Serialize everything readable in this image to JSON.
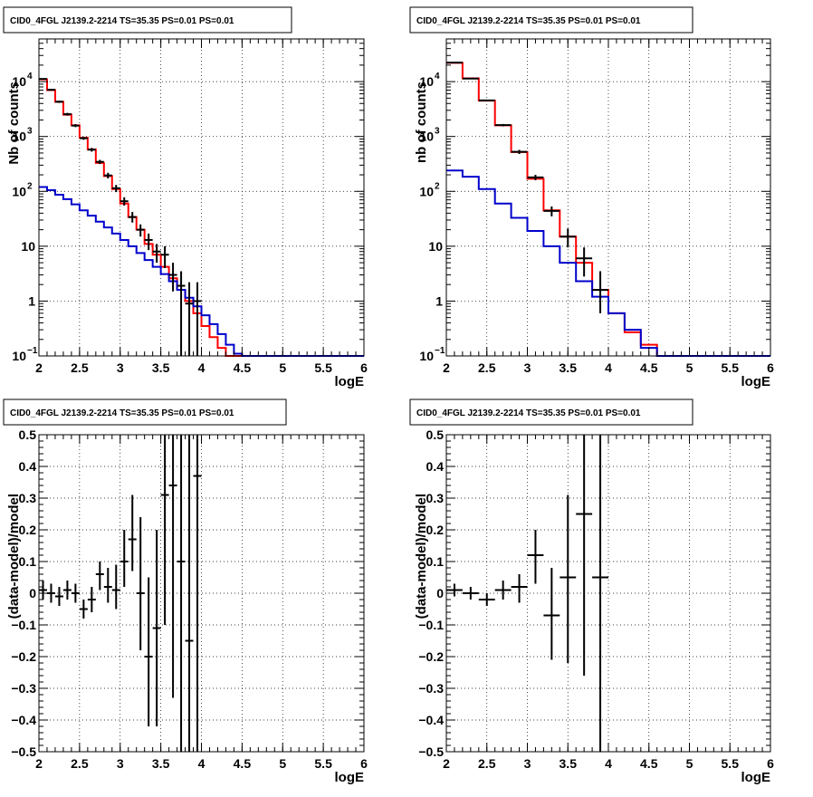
{
  "chart_data": [
    {
      "type": "histogram",
      "title": "CID0_4FGL J2139.2-2214 TS=35.35 PS=0.01 PS=0.01",
      "xlabel": "logE",
      "ylabel": "Nb of counts",
      "xlim": [
        2,
        6
      ],
      "ylim": [
        0.1,
        60000
      ],
      "y_scale": "log",
      "grid": true,
      "x_ticks": [
        "2",
        "2.5",
        "3",
        "3.5",
        "4",
        "4.5",
        "5",
        "5.5",
        "6"
      ],
      "y_ticks": [
        {
          "v": 0.1,
          "label": "10",
          "exp": "−1"
        },
        {
          "v": 1,
          "label": "1",
          "exp": ""
        },
        {
          "v": 10,
          "label": "10",
          "exp": ""
        },
        {
          "v": 100,
          "label": "10",
          "exp": "2"
        },
        {
          "v": 1000,
          "label": "10",
          "exp": "3"
        },
        {
          "v": 10000,
          "label": "10",
          "exp": "4"
        }
      ],
      "bin_edges": [
        2,
        2.1,
        2.2,
        2.3,
        2.4,
        2.5,
        2.6,
        2.7,
        2.8,
        2.9,
        3,
        3.1,
        3.2,
        3.3,
        3.4,
        3.5,
        3.6,
        3.7,
        3.8,
        3.9,
        4,
        4.1,
        4.2,
        4.3,
        4.4,
        4.5,
        4.6,
        4.7,
        4.8,
        4.9,
        5,
        5.1,
        5.2,
        5.3,
        5.4,
        5.5,
        5.6,
        5.7,
        5.8,
        5.9,
        6
      ],
      "series": [
        {
          "color": "#ff0000",
          "style": "step",
          "values": [
            11000,
            7000,
            4300,
            2500,
            1600,
            950,
            580,
            330,
            190,
            110,
            60,
            34,
            20,
            11,
            7,
            4.2,
            2.6,
            1.6,
            1.0,
            0.6,
            0.35,
            0.22,
            0.14,
            0.1,
            0.1,
            0.1,
            0.1,
            0.1,
            0.1,
            0.1,
            0.1,
            0.1,
            0.1,
            0.1,
            0.1,
            0.1,
            0.1,
            0.1,
            0.1,
            0.1
          ]
        },
        {
          "color": "#0000cc",
          "style": "step",
          "values": [
            120,
            105,
            87,
            72,
            58,
            45,
            36,
            28,
            22,
            17,
            13,
            10,
            7.5,
            5.6,
            4.2,
            3.1,
            2.3,
            1.6,
            1.15,
            0.8,
            0.55,
            0.38,
            0.25,
            0.16,
            0.11,
            0.1,
            0.1,
            0.1,
            0.1,
            0.1,
            0.1,
            0.1,
            0.1,
            0.1,
            0.1,
            0.1,
            0.1,
            0.1,
            0.1,
            0.1
          ]
        },
        {
          "color": "#000000",
          "style": "errorbars",
          "points": [
            {
              "x": 2.05,
              "y": 11200,
              "lo": 10900,
              "hi": 11500
            },
            {
              "x": 2.15,
              "y": 7100,
              "lo": 6850,
              "hi": 7350
            },
            {
              "x": 2.25,
              "y": 4300,
              "lo": 4100,
              "hi": 4500
            },
            {
              "x": 2.35,
              "y": 2550,
              "lo": 2400,
              "hi": 2700
            },
            {
              "x": 2.45,
              "y": 1580,
              "lo": 1480,
              "hi": 1680
            },
            {
              "x": 2.55,
              "y": 930,
              "lo": 870,
              "hi": 990
            },
            {
              "x": 2.65,
              "y": 575,
              "lo": 530,
              "hi": 620
            },
            {
              "x": 2.75,
              "y": 345,
              "lo": 315,
              "hi": 375
            },
            {
              "x": 2.85,
              "y": 195,
              "lo": 172,
              "hi": 218
            },
            {
              "x": 2.95,
              "y": 114,
              "lo": 97,
              "hi": 131
            },
            {
              "x": 3.05,
              "y": 66,
              "lo": 55,
              "hi": 78
            },
            {
              "x": 3.15,
              "y": 34,
              "lo": 27,
              "hi": 42
            },
            {
              "x": 3.25,
              "y": 20,
              "lo": 15,
              "hi": 25
            },
            {
              "x": 3.35,
              "y": 13,
              "lo": 8.5,
              "hi": 17
            },
            {
              "x": 3.45,
              "y": 8,
              "lo": 5,
              "hi": 11
            },
            {
              "x": 3.55,
              "y": 7,
              "lo": 4,
              "hi": 10
            },
            {
              "x": 3.65,
              "y": 3,
              "lo": 1.5,
              "hi": 5
            },
            {
              "x": 3.75,
              "y": 1.9,
              "lo": 0.1,
              "hi": 3.5
            },
            {
              "x": 3.85,
              "y": 0.9,
              "lo": 0.1,
              "hi": 2.2
            },
            {
              "x": 3.95,
              "y": 1.0,
              "lo": 0.1,
              "hi": 2.2
            }
          ]
        }
      ]
    },
    {
      "type": "histogram",
      "title": "CID0_4FGL J2139.2-2214 TS=35.35 PS=0.01 PS=0.01",
      "xlabel": "logE",
      "ylabel": "nb of counts",
      "xlim": [
        2,
        6
      ],
      "ylim": [
        0.1,
        60000
      ],
      "y_scale": "log",
      "grid": true,
      "x_ticks": [
        "2",
        "2.5",
        "3",
        "3.5",
        "4",
        "4.5",
        "5",
        "5.5",
        "6"
      ],
      "y_ticks": [
        {
          "v": 0.1,
          "label": "10",
          "exp": "−1"
        },
        {
          "v": 1,
          "label": "1",
          "exp": ""
        },
        {
          "v": 10,
          "label": "10",
          "exp": ""
        },
        {
          "v": 100,
          "label": "10",
          "exp": "2"
        },
        {
          "v": 1000,
          "label": "10",
          "exp": "3"
        },
        {
          "v": 10000,
          "label": "10",
          "exp": "4"
        }
      ],
      "bin_edges": [
        2,
        2.2,
        2.4,
        2.6,
        2.8,
        3,
        3.2,
        3.4,
        3.6,
        3.8,
        4,
        4.2,
        4.4,
        4.6,
        4.8,
        5,
        5.2,
        5.4,
        5.6,
        5.8,
        6
      ],
      "series": [
        {
          "color": "#ff0000",
          "style": "step",
          "values": [
            22000,
            11500,
            4500,
            1600,
            520,
            170,
            45,
            15,
            5,
            1.6,
            0.6,
            0.27,
            0.16,
            0.1,
            0.1,
            0.1,
            0.1,
            0.1,
            0.1,
            0.1
          ]
        },
        {
          "color": "#0000cc",
          "style": "step",
          "values": [
            240,
            185,
            110,
            60,
            33,
            19,
            10,
            5,
            2.3,
            1.2,
            0.6,
            0.3,
            0.14,
            0.1,
            0.1,
            0.1,
            0.1,
            0.1,
            0.1,
            0.1
          ]
        },
        {
          "color": "#000000",
          "style": "errorbars",
          "points": [
            {
              "x": 2.1,
              "y": 22200,
              "lo": 21800,
              "hi": 22600
            },
            {
              "x": 2.3,
              "y": 11400,
              "lo": 11100,
              "hi": 11700
            },
            {
              "x": 2.5,
              "y": 4550,
              "lo": 4400,
              "hi": 4700
            },
            {
              "x": 2.7,
              "y": 1610,
              "lo": 1530,
              "hi": 1690
            },
            {
              "x": 2.9,
              "y": 525,
              "lo": 480,
              "hi": 570
            },
            {
              "x": 3.1,
              "y": 180,
              "lo": 160,
              "hi": 200
            },
            {
              "x": 3.3,
              "y": 44,
              "lo": 35,
              "hi": 53
            },
            {
              "x": 3.5,
              "y": 15,
              "lo": 9.5,
              "hi": 21
            },
            {
              "x": 3.7,
              "y": 6,
              "lo": 2.8,
              "hi": 9.5
            },
            {
              "x": 3.9,
              "y": 1.6,
              "lo": 0.6,
              "hi": 3.5
            }
          ]
        }
      ]
    },
    {
      "type": "scatter",
      "title": "CID0_4FGL J2139.2-2214 TS=35.35 PS=0.01 PS=0.01",
      "xlabel": "logE",
      "ylabel": "(data-model)/model",
      "xlim": [
        2,
        6
      ],
      "ylim": [
        -0.5,
        0.5
      ],
      "grid": true,
      "x_ticks": [
        "2",
        "2.5",
        "3",
        "3.5",
        "4",
        "4.5",
        "5",
        "5.5",
        "6"
      ],
      "y_ticks": [
        "−0.5",
        "−0.4",
        "−0.3",
        "−0.2",
        "−0.1",
        "0",
        "0.1",
        "0.2",
        "0.3",
        "0.4",
        "0.5"
      ],
      "series": [
        {
          "color": "#000000",
          "style": "errorbars",
          "points": [
            {
              "x": 2.05,
              "y": 0.01,
              "lo": -0.02,
              "hi": 0.04
            },
            {
              "x": 2.15,
              "y": 0.0,
              "lo": -0.03,
              "hi": 0.03
            },
            {
              "x": 2.25,
              "y": -0.01,
              "lo": -0.04,
              "hi": 0.02
            },
            {
              "x": 2.35,
              "y": 0.01,
              "lo": -0.02,
              "hi": 0.04
            },
            {
              "x": 2.45,
              "y": 0.0,
              "lo": -0.03,
              "hi": 0.03
            },
            {
              "x": 2.55,
              "y": -0.05,
              "lo": -0.08,
              "hi": -0.02
            },
            {
              "x": 2.65,
              "y": -0.02,
              "lo": -0.06,
              "hi": 0.02
            },
            {
              "x": 2.75,
              "y": 0.06,
              "lo": 0.01,
              "hi": 0.1
            },
            {
              "x": 2.85,
              "y": 0.02,
              "lo": -0.03,
              "hi": 0.08
            },
            {
              "x": 2.95,
              "y": 0.01,
              "lo": -0.05,
              "hi": 0.09
            },
            {
              "x": 3.05,
              "y": 0.1,
              "lo": 0.02,
              "hi": 0.2
            },
            {
              "x": 3.15,
              "y": 0.17,
              "lo": 0.07,
              "hi": 0.31
            },
            {
              "x": 3.25,
              "y": 0.0,
              "lo": -0.18,
              "hi": 0.24
            },
            {
              "x": 3.35,
              "y": -0.2,
              "lo": -0.42,
              "hi": 0.05
            },
            {
              "x": 3.45,
              "y": -0.11,
              "lo": -0.42,
              "hi": 0.2
            },
            {
              "x": 3.55,
              "y": 0.31,
              "lo": -0.1,
              "hi": 0.5
            },
            {
              "x": 3.65,
              "y": 0.34,
              "lo": -0.33,
              "hi": 0.5
            },
            {
              "x": 3.75,
              "y": 0.1,
              "lo": -0.5,
              "hi": 0.5
            },
            {
              "x": 3.85,
              "y": -0.15,
              "lo": -0.5,
              "hi": 0.5
            },
            {
              "x": 3.95,
              "y": 0.37,
              "lo": -0.5,
              "hi": 0.5
            }
          ]
        }
      ]
    },
    {
      "type": "scatter",
      "title": "CID0_4FGL J2139.2-2214 TS=35.35 PS=0.01 PS=0.01",
      "xlabel": "logE",
      "ylabel": "(data-model)/model",
      "xlim": [
        2,
        6
      ],
      "ylim": [
        -0.5,
        0.5
      ],
      "grid": true,
      "x_ticks": [
        "2",
        "2.5",
        "3",
        "3.5",
        "4",
        "4.5",
        "5",
        "5.5",
        "6"
      ],
      "y_ticks": [
        "−0.5",
        "−0.4",
        "−0.3",
        "−0.2",
        "−0.1",
        "0",
        "0.1",
        "0.2",
        "0.3",
        "0.4",
        "0.5"
      ],
      "series": [
        {
          "color": "#000000",
          "style": "errorbars",
          "points": [
            {
              "x": 2.1,
              "y": 0.01,
              "lo": -0.01,
              "hi": 0.03
            },
            {
              "x": 2.3,
              "y": 0.0,
              "lo": -0.02,
              "hi": 0.02
            },
            {
              "x": 2.5,
              "y": -0.02,
              "lo": -0.04,
              "hi": 0.0
            },
            {
              "x": 2.7,
              "y": 0.01,
              "lo": -0.02,
              "hi": 0.04
            },
            {
              "x": 2.9,
              "y": 0.02,
              "lo": -0.03,
              "hi": 0.06
            },
            {
              "x": 3.1,
              "y": 0.12,
              "lo": 0.03,
              "hi": 0.2
            },
            {
              "x": 3.3,
              "y": -0.07,
              "lo": -0.21,
              "hi": 0.08
            },
            {
              "x": 3.5,
              "y": 0.05,
              "lo": -0.22,
              "hi": 0.31
            },
            {
              "x": 3.7,
              "y": 0.25,
              "lo": -0.26,
              "hi": 0.5
            },
            {
              "x": 3.9,
              "y": 0.05,
              "lo": -0.5,
              "hi": 0.5
            }
          ]
        }
      ]
    }
  ]
}
